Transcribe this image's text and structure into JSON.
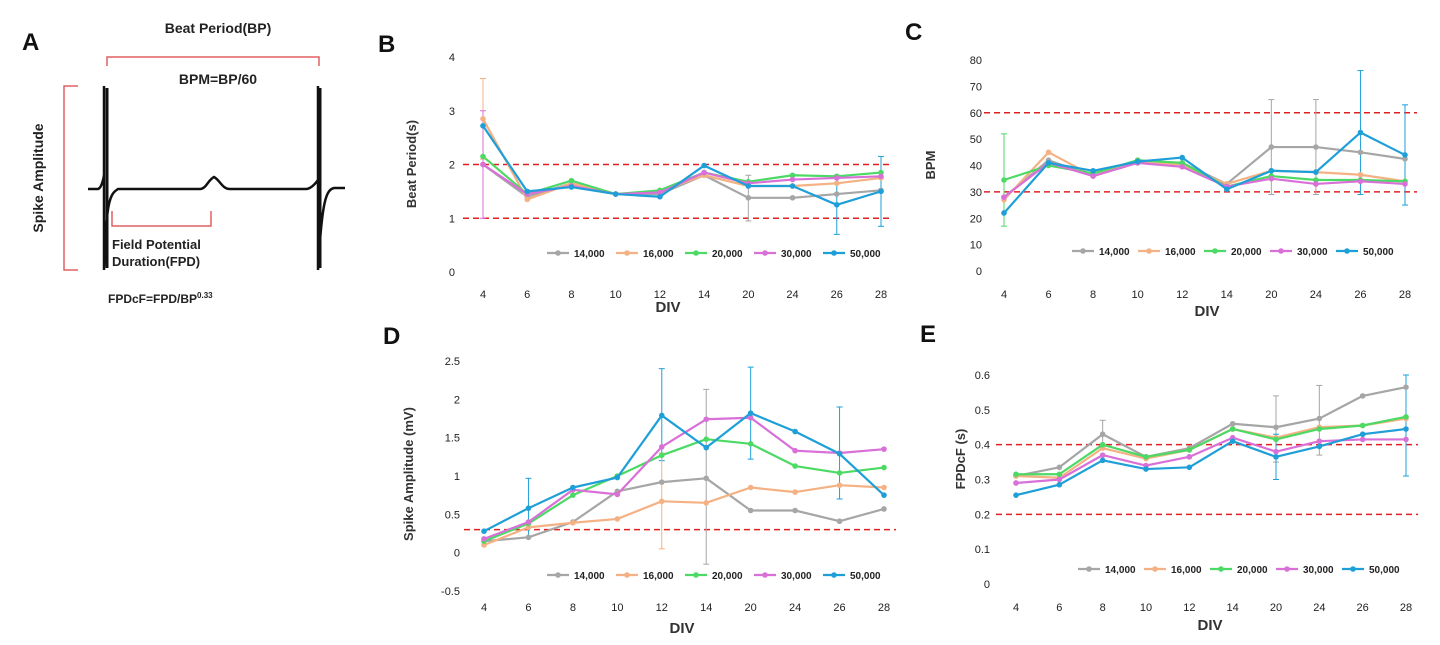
{
  "panel_a": {
    "letter": "A",
    "beat_period": "Beat Period(BP)",
    "bpm_formula": "BPM=BP/60",
    "spike_amplitude": "Spike Amplitude",
    "field_potential_line1": "Field Potential",
    "field_potential_line2": "Duration(FPD)",
    "fpdcf_base": "FPDcF=FPD/BP",
    "fpdcf_exponent": "0.33"
  },
  "series_meta": [
    {
      "name": "14,000",
      "color": "#a6a6a6"
    },
    {
      "name": "16,000",
      "color": "#f4b183"
    },
    {
      "name": "20,000",
      "color": "#4cd964"
    },
    {
      "name": "30,000",
      "color": "#d870d8"
    },
    {
      "name": "50,000",
      "color": "#1e9fd8"
    }
  ],
  "chart_data": [
    {
      "panel": "B",
      "type": "line",
      "ylabel": "Beat Period(s)",
      "xlabel": "DIV",
      "categories": [
        "4",
        "6",
        "8",
        "10",
        "12",
        "14",
        "20",
        "24",
        "26",
        "28"
      ],
      "ylim": [
        0,
        4
      ],
      "yticks": [
        0,
        1,
        2,
        3,
        4
      ],
      "reference_lines": [
        1,
        2
      ],
      "legend_position": "bottom",
      "series": [
        {
          "name": "14,000",
          "values": [
            2.0,
            1.4,
            1.65,
            1.45,
            1.45,
            1.8,
            1.38,
            1.38,
            1.45,
            1.52
          ]
        },
        {
          "name": "16,000",
          "values": [
            2.85,
            1.35,
            1.65,
            1.45,
            1.5,
            1.8,
            1.6,
            1.6,
            1.65,
            1.75
          ]
        },
        {
          "name": "20,000",
          "values": [
            2.15,
            1.45,
            1.7,
            1.45,
            1.52,
            1.85,
            1.68,
            1.8,
            1.78,
            1.85
          ]
        },
        {
          "name": "30,000",
          "values": [
            2.0,
            1.45,
            1.6,
            1.45,
            1.48,
            1.85,
            1.65,
            1.72,
            1.75,
            1.78
          ]
        },
        {
          "name": "50,000",
          "values": [
            2.72,
            1.5,
            1.58,
            1.45,
            1.4,
            1.98,
            1.6,
            1.6,
            1.25,
            1.5
          ]
        }
      ],
      "error_bars": [
        {
          "series": "16,000",
          "index": 0,
          "low": 2.1,
          "high": 3.6
        },
        {
          "series": "30,000",
          "index": 0,
          "low": 1.0,
          "high": 3.0
        },
        {
          "series": "50,000",
          "index": 8,
          "low": 0.7,
          "high": 1.8
        },
        {
          "series": "50,000",
          "index": 9,
          "low": 0.85,
          "high": 2.15
        },
        {
          "series": "14,000",
          "index": 6,
          "low": 0.95,
          "high": 1.8
        }
      ]
    },
    {
      "panel": "C",
      "type": "line",
      "ylabel": "BPM",
      "xlabel": "DIV",
      "categories": [
        "4",
        "6",
        "8",
        "10",
        "12",
        "14",
        "20",
        "24",
        "26",
        "28"
      ],
      "ylim": [
        0,
        80
      ],
      "yticks": [
        0,
        10,
        20,
        30,
        40,
        50,
        60,
        70,
        80
      ],
      "reference_lines": [
        30,
        60
      ],
      "legend_position": "bottom",
      "series": [
        {
          "name": "14,000",
          "values": [
            28,
            42,
            36,
            41,
            41,
            33,
            47,
            47,
            45,
            42.5
          ]
        },
        {
          "name": "16,000",
          "values": [
            27,
            45,
            36,
            42,
            40,
            33,
            38,
            37.5,
            36.5,
            34
          ]
        },
        {
          "name": "20,000",
          "values": [
            34.5,
            40,
            37,
            42,
            41,
            32,
            36,
            34.5,
            34.5,
            34
          ]
        },
        {
          "name": "30,000",
          "values": [
            28,
            41,
            36,
            41,
            39.5,
            32,
            35,
            33,
            34,
            33
          ]
        },
        {
          "name": "50,000",
          "values": [
            22,
            41,
            38,
            41.5,
            43,
            31,
            38,
            37.5,
            52.5,
            44
          ]
        }
      ],
      "error_bars": [
        {
          "series": "20,000",
          "index": 0,
          "low": 17,
          "high": 52
        },
        {
          "series": "14,000",
          "index": 6,
          "low": 29,
          "high": 65
        },
        {
          "series": "14,000",
          "index": 7,
          "low": 29,
          "high": 65
        },
        {
          "series": "50,000",
          "index": 8,
          "low": 29,
          "high": 76
        },
        {
          "series": "50,000",
          "index": 9,
          "low": 25,
          "high": 63
        }
      ]
    },
    {
      "panel": "D",
      "type": "line",
      "ylabel": "Spike Amplitude (mV)",
      "xlabel": "DIV",
      "categories": [
        "4",
        "6",
        "8",
        "10",
        "12",
        "14",
        "20",
        "24",
        "26",
        "28"
      ],
      "ylim": [
        -0.5,
        2.5
      ],
      "yticks": [
        -0.5,
        0,
        0.5,
        1,
        1.5,
        2,
        2.5
      ],
      "reference_lines": [
        0.3
      ],
      "legend_position": "bottom",
      "series": [
        {
          "name": "14,000",
          "values": [
            0.15,
            0.2,
            0.4,
            0.8,
            0.92,
            0.97,
            0.55,
            0.55,
            0.41,
            0.57
          ]
        },
        {
          "name": "16,000",
          "values": [
            0.1,
            0.33,
            0.39,
            0.44,
            0.67,
            0.65,
            0.85,
            0.79,
            0.88,
            0.85
          ]
        },
        {
          "name": "20,000",
          "values": [
            0.15,
            0.38,
            0.75,
            1.0,
            1.27,
            1.48,
            1.42,
            1.13,
            1.04,
            1.11
          ]
        },
        {
          "name": "30,000",
          "values": [
            0.18,
            0.4,
            0.82,
            0.76,
            1.38,
            1.74,
            1.76,
            1.33,
            1.3,
            1.35
          ]
        },
        {
          "name": "50,000",
          "values": [
            0.28,
            0.58,
            0.85,
            0.98,
            1.79,
            1.37,
            1.82,
            1.58,
            1.29,
            0.75
          ]
        }
      ],
      "error_bars": [
        {
          "series": "50,000",
          "index": 1,
          "low": 0.2,
          "high": 0.97
        },
        {
          "series": "50,000",
          "index": 4,
          "low": 1.2,
          "high": 2.4
        },
        {
          "series": "14,000",
          "index": 5,
          "low": -0.15,
          "high": 2.13
        },
        {
          "series": "50,000",
          "index": 6,
          "low": 1.22,
          "high": 2.42
        },
        {
          "series": "50,000",
          "index": 8,
          "low": 0.7,
          "high": 1.9
        },
        {
          "series": "16,000",
          "index": 4,
          "low": 0.05,
          "high": 1.3
        }
      ]
    },
    {
      "panel": "E",
      "type": "line",
      "ylabel": "FPDcF (s)",
      "xlabel": "DIV",
      "categories": [
        "4",
        "6",
        "8",
        "10",
        "12",
        "14",
        "20",
        "24",
        "26",
        "28"
      ],
      "ylim": [
        0,
        0.6
      ],
      "yticks": [
        0,
        0.1,
        0.2,
        0.3,
        0.4,
        0.5,
        0.6
      ],
      "reference_lines": [
        0.2,
        0.4
      ],
      "legend_position": "bottom",
      "series": [
        {
          "name": "14,000",
          "values": [
            0.31,
            0.335,
            0.43,
            0.365,
            0.39,
            0.46,
            0.45,
            0.475,
            0.54,
            0.565
          ]
        },
        {
          "name": "16,000",
          "values": [
            0.31,
            0.305,
            0.39,
            0.36,
            0.385,
            0.445,
            0.42,
            0.45,
            0.455,
            0.475
          ]
        },
        {
          "name": "20,000",
          "values": [
            0.315,
            0.315,
            0.4,
            0.365,
            0.385,
            0.445,
            0.415,
            0.445,
            0.455,
            0.48
          ]
        },
        {
          "name": "30,000",
          "values": [
            0.29,
            0.3,
            0.37,
            0.34,
            0.365,
            0.42,
            0.38,
            0.41,
            0.415,
            0.415
          ]
        },
        {
          "name": "50,000",
          "values": [
            0.255,
            0.285,
            0.355,
            0.33,
            0.335,
            0.41,
            0.365,
            0.395,
            0.43,
            0.445
          ]
        }
      ],
      "error_bars": [
        {
          "series": "14,000",
          "index": 2,
          "low": 0.39,
          "high": 0.47
        },
        {
          "series": "14,000",
          "index": 6,
          "low": 0.35,
          "high": 0.54
        },
        {
          "series": "14,000",
          "index": 7,
          "low": 0.37,
          "high": 0.57
        },
        {
          "series": "50,000",
          "index": 6,
          "low": 0.3,
          "high": 0.43
        },
        {
          "series": "50,000",
          "index": 9,
          "low": 0.31,
          "high": 0.6
        }
      ]
    }
  ]
}
